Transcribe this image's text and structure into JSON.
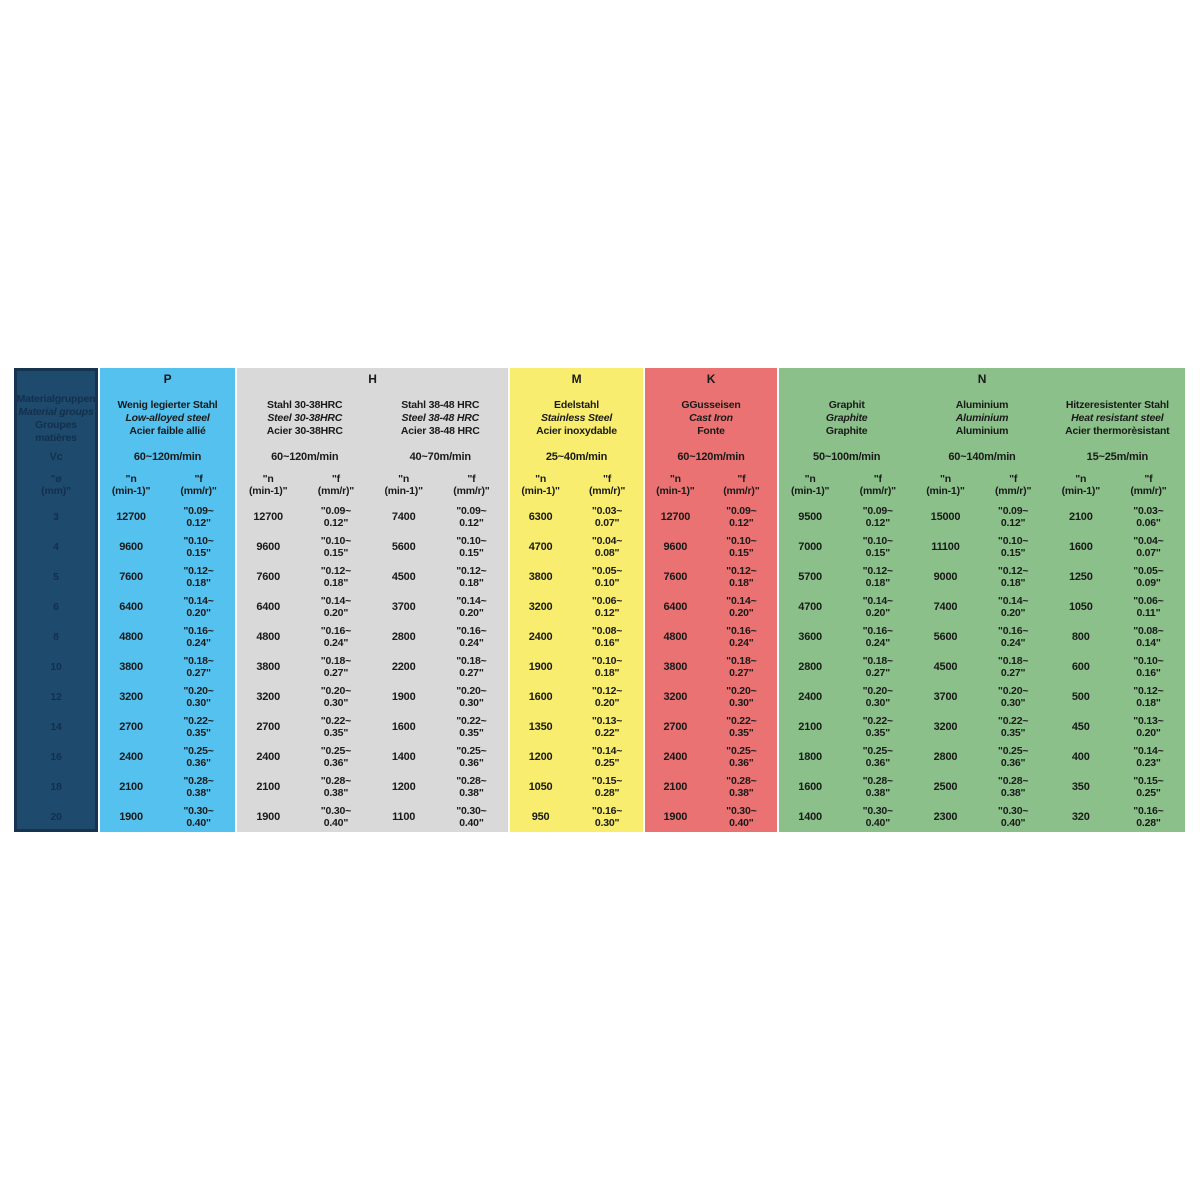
{
  "table": {
    "left": {
      "bg": "#1E4A6E",
      "text_color": "#12304C",
      "lines": [
        "Materialgruppen",
        "Material groups",
        "Groupes matières"
      ],
      "vc_label": "Vc",
      "dia": [
        "\"ø",
        "(mm)\""
      ],
      "diameters": [
        "3",
        "4",
        "5",
        "6",
        "8",
        "10",
        "12",
        "14",
        "16",
        "18",
        "20"
      ]
    },
    "unit_n": [
      "\"n",
      "(min-1)\""
    ],
    "unit_f": [
      "\"f",
      "(mm/r)\""
    ],
    "ink_color": "#1A1A1A",
    "groups": [
      {
        "key": "p",
        "letter": "P",
        "color": "#55C1EF",
        "materials": [
          {
            "lines": [
              "Wenig legierter Stahl",
              "Low-alloyed steel",
              "Acier faible allié"
            ],
            "vc": "60~120m/min",
            "rows": [
              [
                "12700",
                "\"0.09~",
                "0.12\""
              ],
              [
                "9600",
                "\"0.10~",
                "0.15\""
              ],
              [
                "7600",
                "\"0.12~",
                "0.18\""
              ],
              [
                "6400",
                "\"0.14~",
                "0.20\""
              ],
              [
                "4800",
                "\"0.16~",
                "0.24\""
              ],
              [
                "3800",
                "\"0.18~",
                "0.27\""
              ],
              [
                "3200",
                "\"0.20~",
                "0.30\""
              ],
              [
                "2700",
                "\"0.22~",
                "0.35\""
              ],
              [
                "2400",
                "\"0.25~",
                "0.36\""
              ],
              [
                "2100",
                "\"0.28~",
                "0.38\""
              ],
              [
                "1900",
                "\"0.30~",
                "0.40\""
              ]
            ]
          }
        ]
      },
      {
        "key": "h",
        "letter": "H",
        "color": "#D9D9D9",
        "materials": [
          {
            "lines": [
              "Stahl 30-38HRC",
              "Steel 30-38HRC",
              "Acier 30-38HRC"
            ],
            "vc": "60~120m/min",
            "rows": [
              [
                "12700",
                "\"0.09~",
                "0.12\""
              ],
              [
                "9600",
                "\"0.10~",
                "0.15\""
              ],
              [
                "7600",
                "\"0.12~",
                "0.18\""
              ],
              [
                "6400",
                "\"0.14~",
                "0.20\""
              ],
              [
                "4800",
                "\"0.16~",
                "0.24\""
              ],
              [
                "3800",
                "\"0.18~",
                "0.27\""
              ],
              [
                "3200",
                "\"0.20~",
                "0.30\""
              ],
              [
                "2700",
                "\"0.22~",
                "0.35\""
              ],
              [
                "2400",
                "\"0.25~",
                "0.36\""
              ],
              [
                "2100",
                "\"0.28~",
                "0.38\""
              ],
              [
                "1900",
                "\"0.30~",
                "0.40\""
              ]
            ]
          },
          {
            "lines": [
              "Stahl 38-48 HRC",
              "Steel 38-48 HRC",
              "Acier 38-48 HRC"
            ],
            "vc": "40~70m/min",
            "rows": [
              [
                "7400",
                "\"0.09~",
                "0.12\""
              ],
              [
                "5600",
                "\"0.10~",
                "0.15\""
              ],
              [
                "4500",
                "\"0.12~",
                "0.18\""
              ],
              [
                "3700",
                "\"0.14~",
                "0.20\""
              ],
              [
                "2800",
                "\"0.16~",
                "0.24\""
              ],
              [
                "2200",
                "\"0.18~",
                "0.27\""
              ],
              [
                "1900",
                "\"0.20~",
                "0.30\""
              ],
              [
                "1600",
                "\"0.22~",
                "0.35\""
              ],
              [
                "1400",
                "\"0.25~",
                "0.36\""
              ],
              [
                "1200",
                "\"0.28~",
                "0.38\""
              ],
              [
                "1100",
                "\"0.30~",
                "0.40\""
              ]
            ]
          }
        ]
      },
      {
        "key": "m",
        "letter": "M",
        "color": "#F8ED6E",
        "materials": [
          {
            "lines": [
              "Edelstahl",
              "Stainless Steel",
              "Acier inoxydable"
            ],
            "vc": "25~40m/min",
            "rows": [
              [
                "6300",
                "\"0.03~",
                "0.07\""
              ],
              [
                "4700",
                "\"0.04~",
                "0.08\""
              ],
              [
                "3800",
                "\"0.05~",
                "0.10\""
              ],
              [
                "3200",
                "\"0.06~",
                "0.12\""
              ],
              [
                "2400",
                "\"0.08~",
                "0.16\""
              ],
              [
                "1900",
                "\"0.10~",
                "0.18\""
              ],
              [
                "1600",
                "\"0.12~",
                "0.20\""
              ],
              [
                "1350",
                "\"0.13~",
                "0.22\""
              ],
              [
                "1200",
                "\"0.14~",
                "0.25\""
              ],
              [
                "1050",
                "\"0.15~",
                "0.28\""
              ],
              [
                "950",
                "\"0.16~",
                "0.30\""
              ]
            ]
          }
        ]
      },
      {
        "key": "k",
        "letter": "K",
        "color": "#EA7272",
        "materials": [
          {
            "lines": [
              "GGusseisen",
              "Cast Iron",
              "Fonte"
            ],
            "vc": "60~120m/min",
            "rows": [
              [
                "12700",
                "\"0.09~",
                "0.12\""
              ],
              [
                "9600",
                "\"0.10~",
                "0.15\""
              ],
              [
                "7600",
                "\"0.12~",
                "0.18\""
              ],
              [
                "6400",
                "\"0.14~",
                "0.20\""
              ],
              [
                "4800",
                "\"0.16~",
                "0.24\""
              ],
              [
                "3800",
                "\"0.18~",
                "0.27\""
              ],
              [
                "3200",
                "\"0.20~",
                "0.30\""
              ],
              [
                "2700",
                "\"0.22~",
                "0.35\""
              ],
              [
                "2400",
                "\"0.25~",
                "0.36\""
              ],
              [
                "2100",
                "\"0.28~",
                "0.38\""
              ],
              [
                "1900",
                "\"0.30~",
                "0.40\""
              ]
            ]
          }
        ]
      },
      {
        "key": "n",
        "letter": "N",
        "color": "#8BC08B",
        "materials": [
          {
            "lines": [
              "Graphit",
              "Graphite",
              "Graphite"
            ],
            "vc": "50~100m/min",
            "rows": [
              [
                "9500",
                "\"0.09~",
                "0.12\""
              ],
              [
                "7000",
                "\"0.10~",
                "0.15\""
              ],
              [
                "5700",
                "\"0.12~",
                "0.18\""
              ],
              [
                "4700",
                "\"0.14~",
                "0.20\""
              ],
              [
                "3600",
                "\"0.16~",
                "0.24\""
              ],
              [
                "2800",
                "\"0.18~",
                "0.27\""
              ],
              [
                "2400",
                "\"0.20~",
                "0.30\""
              ],
              [
                "2100",
                "\"0.22~",
                "0.35\""
              ],
              [
                "1800",
                "\"0.25~",
                "0.36\""
              ],
              [
                "1600",
                "\"0.28~",
                "0.38\""
              ],
              [
                "1400",
                "\"0.30~",
                "0.40\""
              ]
            ]
          },
          {
            "lines": [
              "Aluminium",
              "Aluminium",
              "Aluminium"
            ],
            "vc": "60~140m/min",
            "rows": [
              [
                "15000",
                "\"0.09~",
                "0.12\""
              ],
              [
                "11100",
                "\"0.10~",
                "0.15\""
              ],
              [
                "9000",
                "\"0.12~",
                "0.18\""
              ],
              [
                "7400",
                "\"0.14~",
                "0.20\""
              ],
              [
                "5600",
                "\"0.16~",
                "0.24\""
              ],
              [
                "4500",
                "\"0.18~",
                "0.27\""
              ],
              [
                "3700",
                "\"0.20~",
                "0.30\""
              ],
              [
                "3200",
                "\"0.22~",
                "0.35\""
              ],
              [
                "2800",
                "\"0.25~",
                "0.36\""
              ],
              [
                "2500",
                "\"0.28~",
                "0.38\""
              ],
              [
                "2300",
                "\"0.30~",
                "0.40\""
              ]
            ]
          },
          {
            "lines": [
              "Hitzeresistenter Stahl",
              "Heat resistant steel",
              "Acier thermorèsistant"
            ],
            "vc": "15~25m/min",
            "rows": [
              [
                "2100",
                "\"0.03~",
                "0.06\""
              ],
              [
                "1600",
                "\"0.04~",
                "0.07\""
              ],
              [
                "1250",
                "\"0.05~",
                "0.09\""
              ],
              [
                "1050",
                "\"0.06~",
                "0.11\""
              ],
              [
                "800",
                "\"0.08~",
                "0.14\""
              ],
              [
                "600",
                "\"0.10~",
                "0.16\""
              ],
              [
                "500",
                "\"0.12~",
                "0.18\""
              ],
              [
                "450",
                "\"0.13~",
                "0.20\""
              ],
              [
                "400",
                "\"0.14~",
                "0.23\""
              ],
              [
                "350",
                "\"0.15~",
                "0.25\""
              ],
              [
                "320",
                "\"0.16~",
                "0.28\""
              ]
            ]
          }
        ]
      }
    ]
  }
}
